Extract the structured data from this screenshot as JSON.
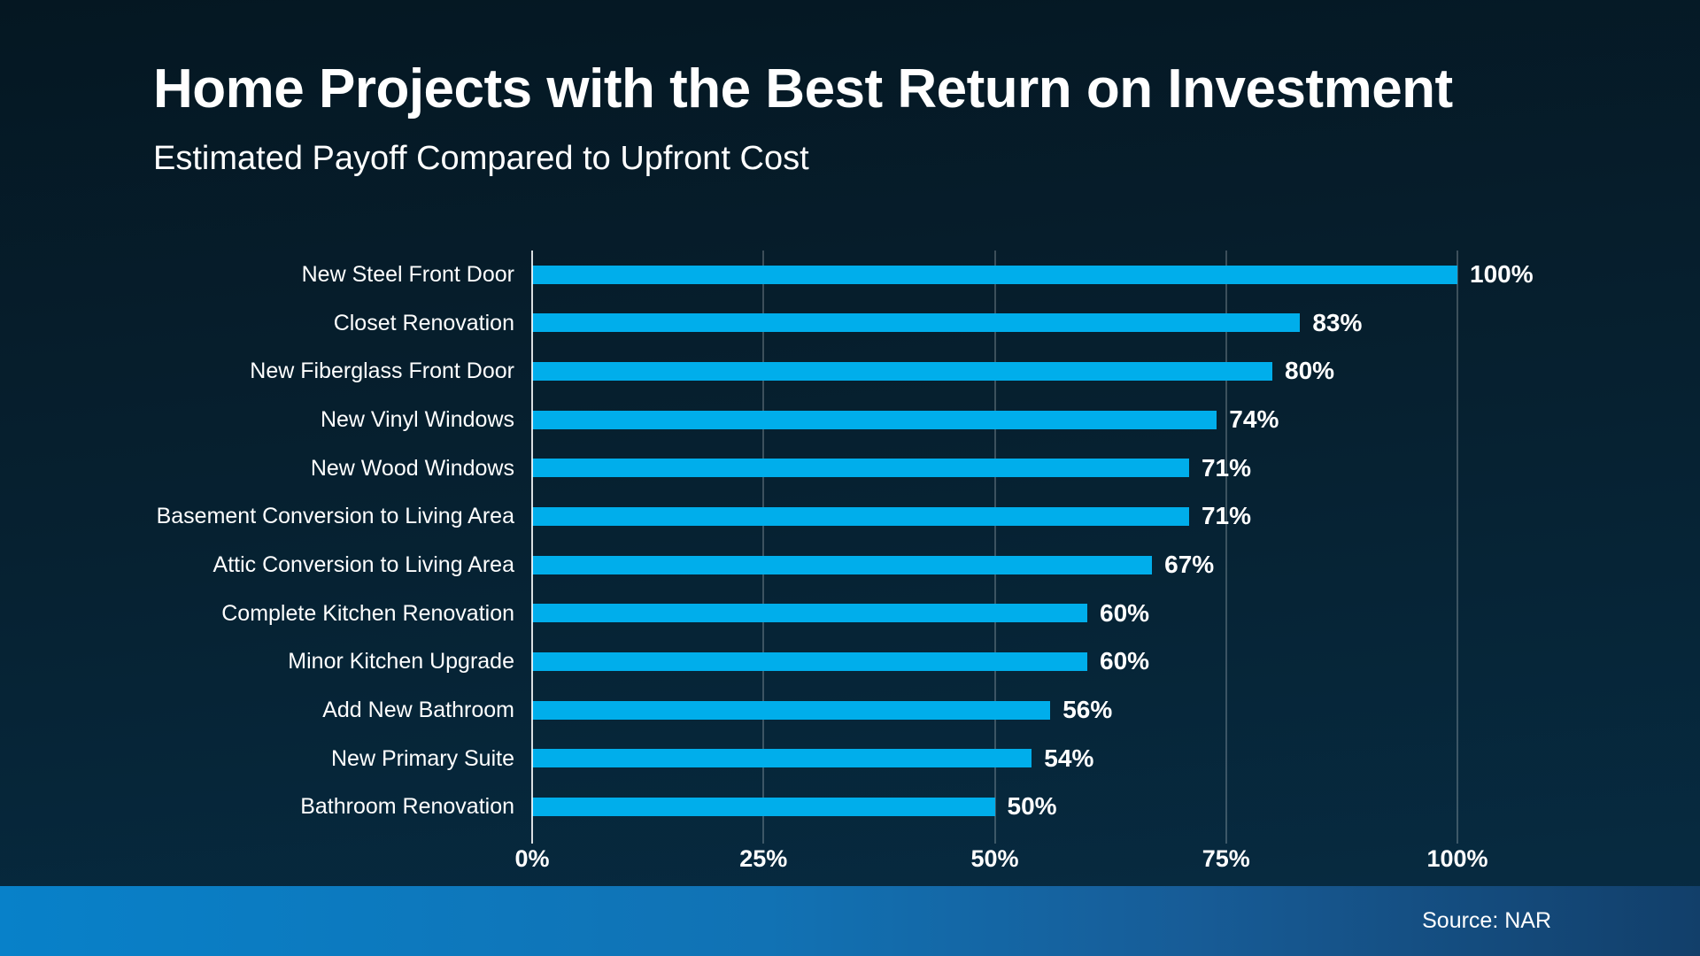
{
  "header": {
    "title": "Home Projects with the Best Return on Investment",
    "subtitle": "Estimated Payoff Compared to Upfront Cost"
  },
  "footer": {
    "source": "Source: NAR"
  },
  "colors": {
    "background_top": "#051722",
    "background_mid": "#062131",
    "background_bottom": "#072c43",
    "bar": "#00AEEB",
    "text": "#ffffff",
    "axis_line": "rgba(255,255,255,0.85)",
    "gridline": "rgba(255,255,255,0.22)",
    "footer_left": "#0881c9",
    "footer_right": "#123f6a"
  },
  "chart_data": {
    "type": "bar",
    "orientation": "horizontal",
    "title": "Home Projects with the Best Return on Investment",
    "subtitle": "Estimated Payoff Compared to Upfront Cost",
    "categories": [
      "New Steel Front Door",
      "Closet Renovation",
      "New Fiberglass Front Door",
      "New Vinyl Windows",
      "New Wood Windows",
      "Basement Conversion to Living Area",
      "Attic Conversion to Living Area",
      "Complete Kitchen Renovation",
      "Minor Kitchen Upgrade",
      "Add New Bathroom",
      "New Primary Suite",
      "Bathroom Renovation"
    ],
    "values": [
      100,
      83,
      80,
      74,
      71,
      71,
      67,
      60,
      60,
      56,
      54,
      50
    ],
    "value_labels": [
      "100%",
      "83%",
      "80%",
      "74%",
      "71%",
      "71%",
      "67%",
      "60%",
      "60%",
      "56%",
      "54%",
      "50%"
    ],
    "xlabel": "",
    "ylabel": "",
    "xlim": [
      0,
      100
    ],
    "x_tick_values": [
      0,
      25,
      50,
      75,
      100
    ],
    "x_tick_labels": [
      "0%",
      "25%",
      "50%",
      "75%",
      "100%"
    ],
    "grid": "vertical-gridlines-on",
    "legend": "none",
    "source": "Source: NAR"
  }
}
